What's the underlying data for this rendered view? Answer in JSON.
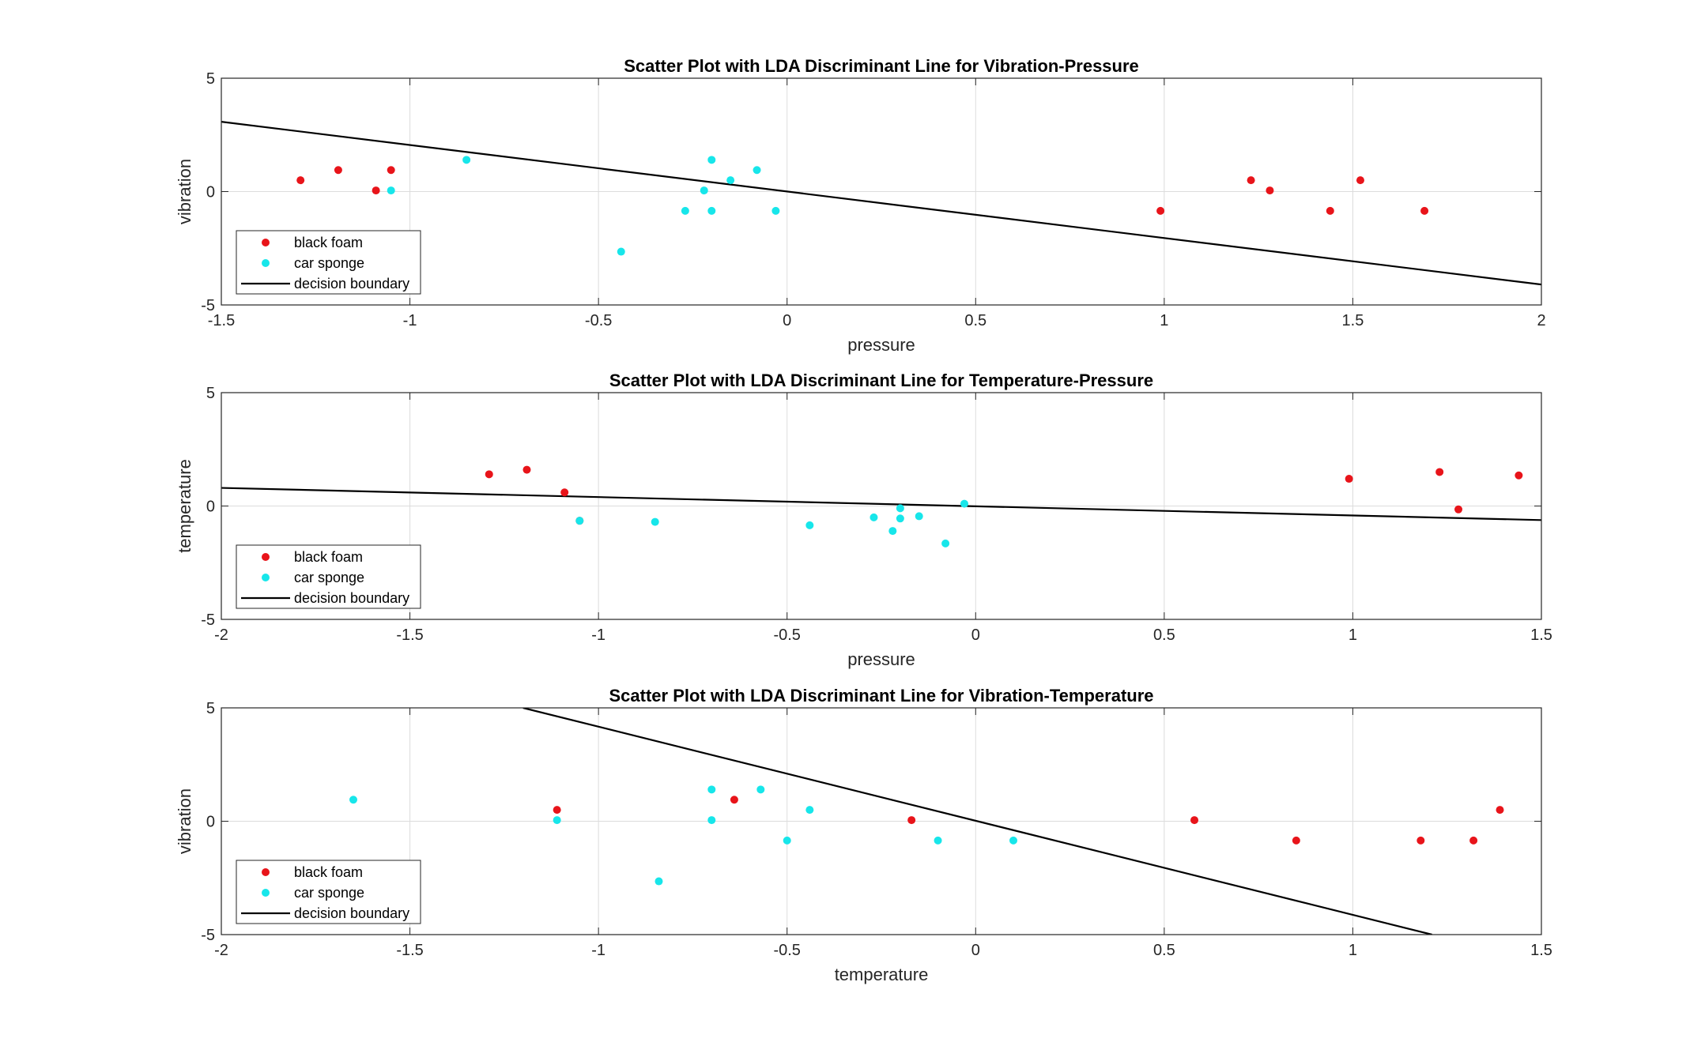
{
  "colors": {
    "class_a": "#e8141a",
    "class_b": "#17e6ea",
    "boundary": "#000000",
    "grid": "#dcdcdc",
    "axes": "#262626"
  },
  "chart_data": [
    {
      "type": "scatter",
      "title": "Scatter Plot with LDA Discriminant Line for Vibration-Pressure",
      "xlabel": "pressure",
      "ylabel": "vibration",
      "xlim": [
        -1.5,
        2
      ],
      "ylim": [
        -5,
        5
      ],
      "xticks": [
        -1.5,
        -1,
        -0.5,
        0,
        0.5,
        1,
        1.5,
        2
      ],
      "xtick_labels": [
        "-1.5",
        "-1",
        "-0.5",
        "0",
        "0.5",
        "1",
        "1.5",
        "2"
      ],
      "yticks": [
        -5,
        0,
        5
      ],
      "ytick_labels": [
        "-5",
        "0",
        "5"
      ],
      "grid": true,
      "legend_position": "bottom-left",
      "series": [
        {
          "name": "black foam",
          "color": "red",
          "x": [
            -1.29,
            -1.19,
            -1.09,
            -1.05,
            0.99,
            1.23,
            1.28,
            1.44,
            1.52,
            1.69
          ],
          "y": [
            0.5,
            0.95,
            0.05,
            0.95,
            -0.85,
            0.5,
            0.05,
            -0.85,
            0.5,
            -0.85
          ]
        },
        {
          "name": "car sponge",
          "color": "cyan",
          "x": [
            -1.05,
            -0.85,
            -0.44,
            -0.27,
            -0.22,
            -0.2,
            -0.2,
            -0.15,
            -0.08,
            -0.03
          ],
          "y": [
            0.05,
            1.4,
            -2.65,
            -0.85,
            0.05,
            1.4,
            -0.85,
            0.5,
            0.95,
            -0.85
          ]
        }
      ],
      "line": {
        "name": "decision boundary",
        "x": [
          -1.5,
          2
        ],
        "y": [
          3.08,
          -4.1
        ]
      }
    },
    {
      "type": "scatter",
      "title": "Scatter Plot with LDA Discriminant Line for Temperature-Pressure",
      "xlabel": "pressure",
      "ylabel": "temperature",
      "xlim": [
        -2,
        1.5
      ],
      "ylim": [
        -5,
        5
      ],
      "xticks": [
        -2,
        -1.5,
        -1,
        -0.5,
        0,
        0.5,
        1,
        1.5
      ],
      "xtick_labels": [
        "-2",
        "-1.5",
        "-1",
        "-0.5",
        "0",
        "0.5",
        "1",
        "1.5"
      ],
      "yticks": [
        -5,
        0,
        5
      ],
      "ytick_labels": [
        "-5",
        "0",
        "5"
      ],
      "grid": true,
      "legend_position": "bottom-left",
      "series": [
        {
          "name": "black foam",
          "color": "red",
          "x": [
            -1.29,
            -1.19,
            -1.09,
            -1.05,
            0.99,
            1.23,
            1.28,
            1.44
          ],
          "y": [
            1.4,
            1.6,
            0.6,
            -0.65,
            1.2,
            1.5,
            -0.15,
            1.35
          ]
        },
        {
          "name": "car sponge",
          "color": "cyan",
          "x": [
            -1.05,
            -0.85,
            -0.44,
            -0.27,
            -0.22,
            -0.2,
            -0.2,
            -0.15,
            -0.08,
            -0.03
          ],
          "y": [
            -0.65,
            -0.7,
            -0.85,
            -0.5,
            -1.1,
            -0.55,
            -0.1,
            -0.45,
            -1.65,
            0.1
          ]
        }
      ],
      "line": {
        "name": "decision boundary",
        "x": [
          -2,
          1.5
        ],
        "y": [
          0.8,
          -0.62
        ]
      }
    },
    {
      "type": "scatter",
      "title": "Scatter Plot with LDA Discriminant Line for Vibration-Temperature",
      "xlabel": "temperature",
      "ylabel": "vibration",
      "xlim": [
        -2,
        1.5
      ],
      "ylim": [
        -5,
        5
      ],
      "xticks": [
        -2,
        -1.5,
        -1,
        -0.5,
        0,
        0.5,
        1,
        1.5
      ],
      "xtick_labels": [
        "-2",
        "-1.5",
        "-1",
        "-0.5",
        "0",
        "0.5",
        "1",
        "1.5"
      ],
      "yticks": [
        -5,
        0,
        5
      ],
      "ytick_labels": [
        "-5",
        "0",
        "5"
      ],
      "grid": true,
      "legend_position": "bottom-left",
      "series": [
        {
          "name": "black foam",
          "color": "red",
          "x": [
            -1.11,
            -0.64,
            -0.17,
            0.58,
            0.85,
            1.18,
            1.32,
            1.39
          ],
          "y": [
            0.5,
            0.95,
            0.05,
            0.05,
            -0.85,
            -0.85,
            -0.85,
            0.5
          ]
        },
        {
          "name": "car sponge",
          "color": "cyan",
          "x": [
            -1.65,
            -1.11,
            -0.84,
            -0.7,
            -0.7,
            -0.57,
            -0.5,
            -0.44,
            -0.1,
            0.1
          ],
          "y": [
            0.95,
            0.05,
            -2.65,
            1.4,
            0.05,
            1.4,
            -0.85,
            0.5,
            -0.85,
            -0.85
          ]
        }
      ],
      "line": {
        "name": "decision boundary",
        "x": [
          -1.2,
          1.21
        ],
        "y": [
          5,
          -5
        ]
      }
    }
  ]
}
